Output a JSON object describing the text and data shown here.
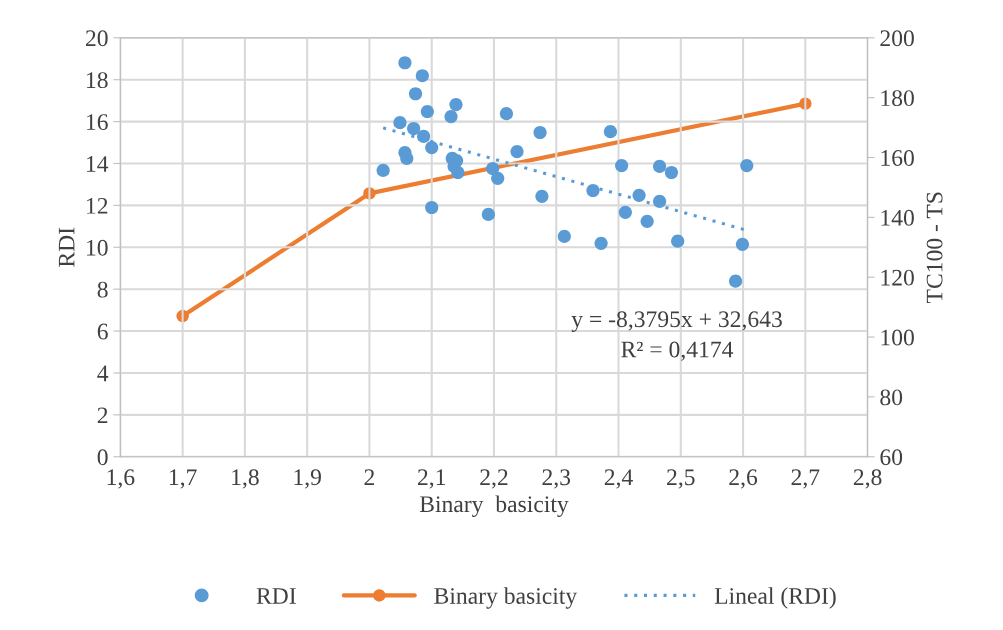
{
  "chart_data": {
    "type": "scatter",
    "xlabel": "Binary  basicity",
    "ylabel": "RDI",
    "y2label": "TC100 - TS",
    "xlim": [
      1.6,
      2.8
    ],
    "xticks": [
      {
        "value": 1.6,
        "label": "1,6"
      },
      {
        "value": 1.7,
        "label": "1,7"
      },
      {
        "value": 1.8,
        "label": "1,8"
      },
      {
        "value": 1.9,
        "label": "1,9"
      },
      {
        "value": 2,
        "label": "2"
      },
      {
        "value": 2.1,
        "label": "2,1"
      },
      {
        "value": 2.2,
        "label": "2,2"
      },
      {
        "value": 2.3,
        "label": "2,3"
      },
      {
        "value": 2.4,
        "label": "2,4"
      },
      {
        "value": 2.5,
        "label": "2,5"
      },
      {
        "value": 2.6,
        "label": "2,6"
      },
      {
        "value": 2.7,
        "label": "2,7"
      },
      {
        "value": 2.8,
        "label": "2,8"
      }
    ],
    "ylim": [
      0,
      20
    ],
    "yticks": [
      0,
      2,
      4,
      6,
      8,
      10,
      12,
      14,
      16,
      18,
      20
    ],
    "y2lim": [
      60,
      200
    ],
    "y2ticks": [
      60,
      80,
      100,
      120,
      140,
      160,
      180,
      200
    ],
    "grid": true,
    "legend": "bottom",
    "annotations": [
      "y = -8,3795x + 32,643",
      "R² = 0,4174"
    ],
    "series": [
      {
        "name": "RDI",
        "type": "scatter",
        "color": "#5b9bd5",
        "marker": "circle",
        "x": [
          2.022,
          2.057,
          2.057,
          2.06,
          2.074,
          2.071,
          2.085,
          2.093,
          2.087,
          2.1,
          2.049,
          2.1,
          2.131,
          2.139,
          2.133,
          2.14,
          2.136,
          2.142,
          2.198,
          2.206,
          2.191,
          2.22,
          2.237,
          2.274,
          2.277,
          2.313,
          2.372,
          2.387,
          2.359,
          2.405,
          2.411,
          2.433,
          2.446,
          2.466,
          2.466,
          2.485,
          2.495,
          2.588,
          2.599,
          2.606
        ],
        "values": [
          13.67,
          18.81,
          14.52,
          14.24,
          17.33,
          15.67,
          18.19,
          16.48,
          15.29,
          14.76,
          15.95,
          11.9,
          16.24,
          16.81,
          14.24,
          14.14,
          13.86,
          13.57,
          13.76,
          13.29,
          11.57,
          16.38,
          14.57,
          15.48,
          12.43,
          10.52,
          10.19,
          15.52,
          12.71,
          13.9,
          11.67,
          12.48,
          11.24,
          13.86,
          12.19,
          13.57,
          10.29,
          8.38,
          10.14,
          13.9
        ]
      },
      {
        "name": "Binary basicity",
        "type": "line",
        "axis": "y2",
        "color": "#ed7d31",
        "marker": "circle",
        "line_style": "solid",
        "x": [
          1.7,
          2.0,
          2.7
        ],
        "values": [
          107,
          148,
          178
        ]
      },
      {
        "name": "Lineal (RDI)",
        "type": "line",
        "color": "#5b9bd5",
        "marker": "none",
        "line_style": "dotted",
        "x": [
          2.022,
          2.606
        ],
        "values": [
          15.7,
          10.81
        ]
      }
    ]
  }
}
